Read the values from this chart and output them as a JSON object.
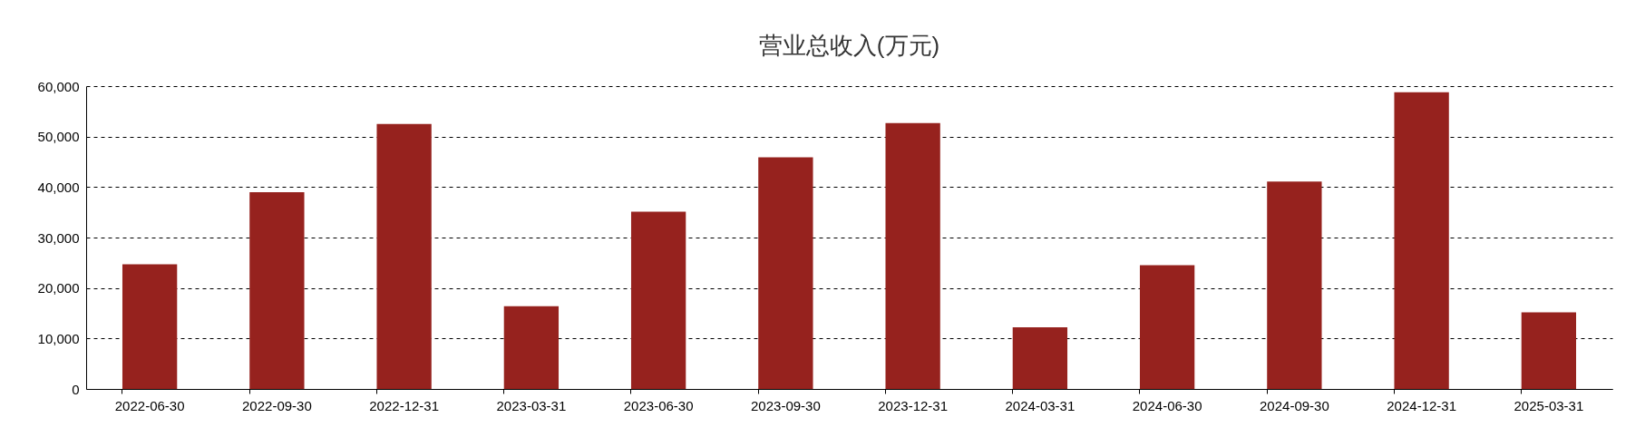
{
  "chart_data": {
    "type": "bar",
    "title": "营业总收入(万元)",
    "categories": [
      "2022-06-30",
      "2022-09-30",
      "2022-12-31",
      "2023-03-31",
      "2023-06-30",
      "2023-09-30",
      "2023-12-31",
      "2024-03-31",
      "2024-06-30",
      "2024-09-30",
      "2024-12-31",
      "2025-03-31"
    ],
    "values": [
      24700,
      39000,
      52500,
      16400,
      35100,
      45900,
      52700,
      12200,
      24500,
      41100,
      58800,
      15200
    ],
    "color": "#96221e",
    "ylim": [
      0,
      60000
    ],
    "yticks": [
      0,
      {
        "value": 10000,
        "label": "10,000"
      },
      {
        "value": 20000,
        "label": "20,000"
      },
      {
        "value": 30000,
        "label": "30,000"
      },
      {
        "value": 40000,
        "label": "40,000"
      },
      {
        "value": 50000,
        "label": "50,000"
      },
      {
        "value": 60000,
        "label": "60,000"
      }
    ],
    "grid": "y"
  }
}
